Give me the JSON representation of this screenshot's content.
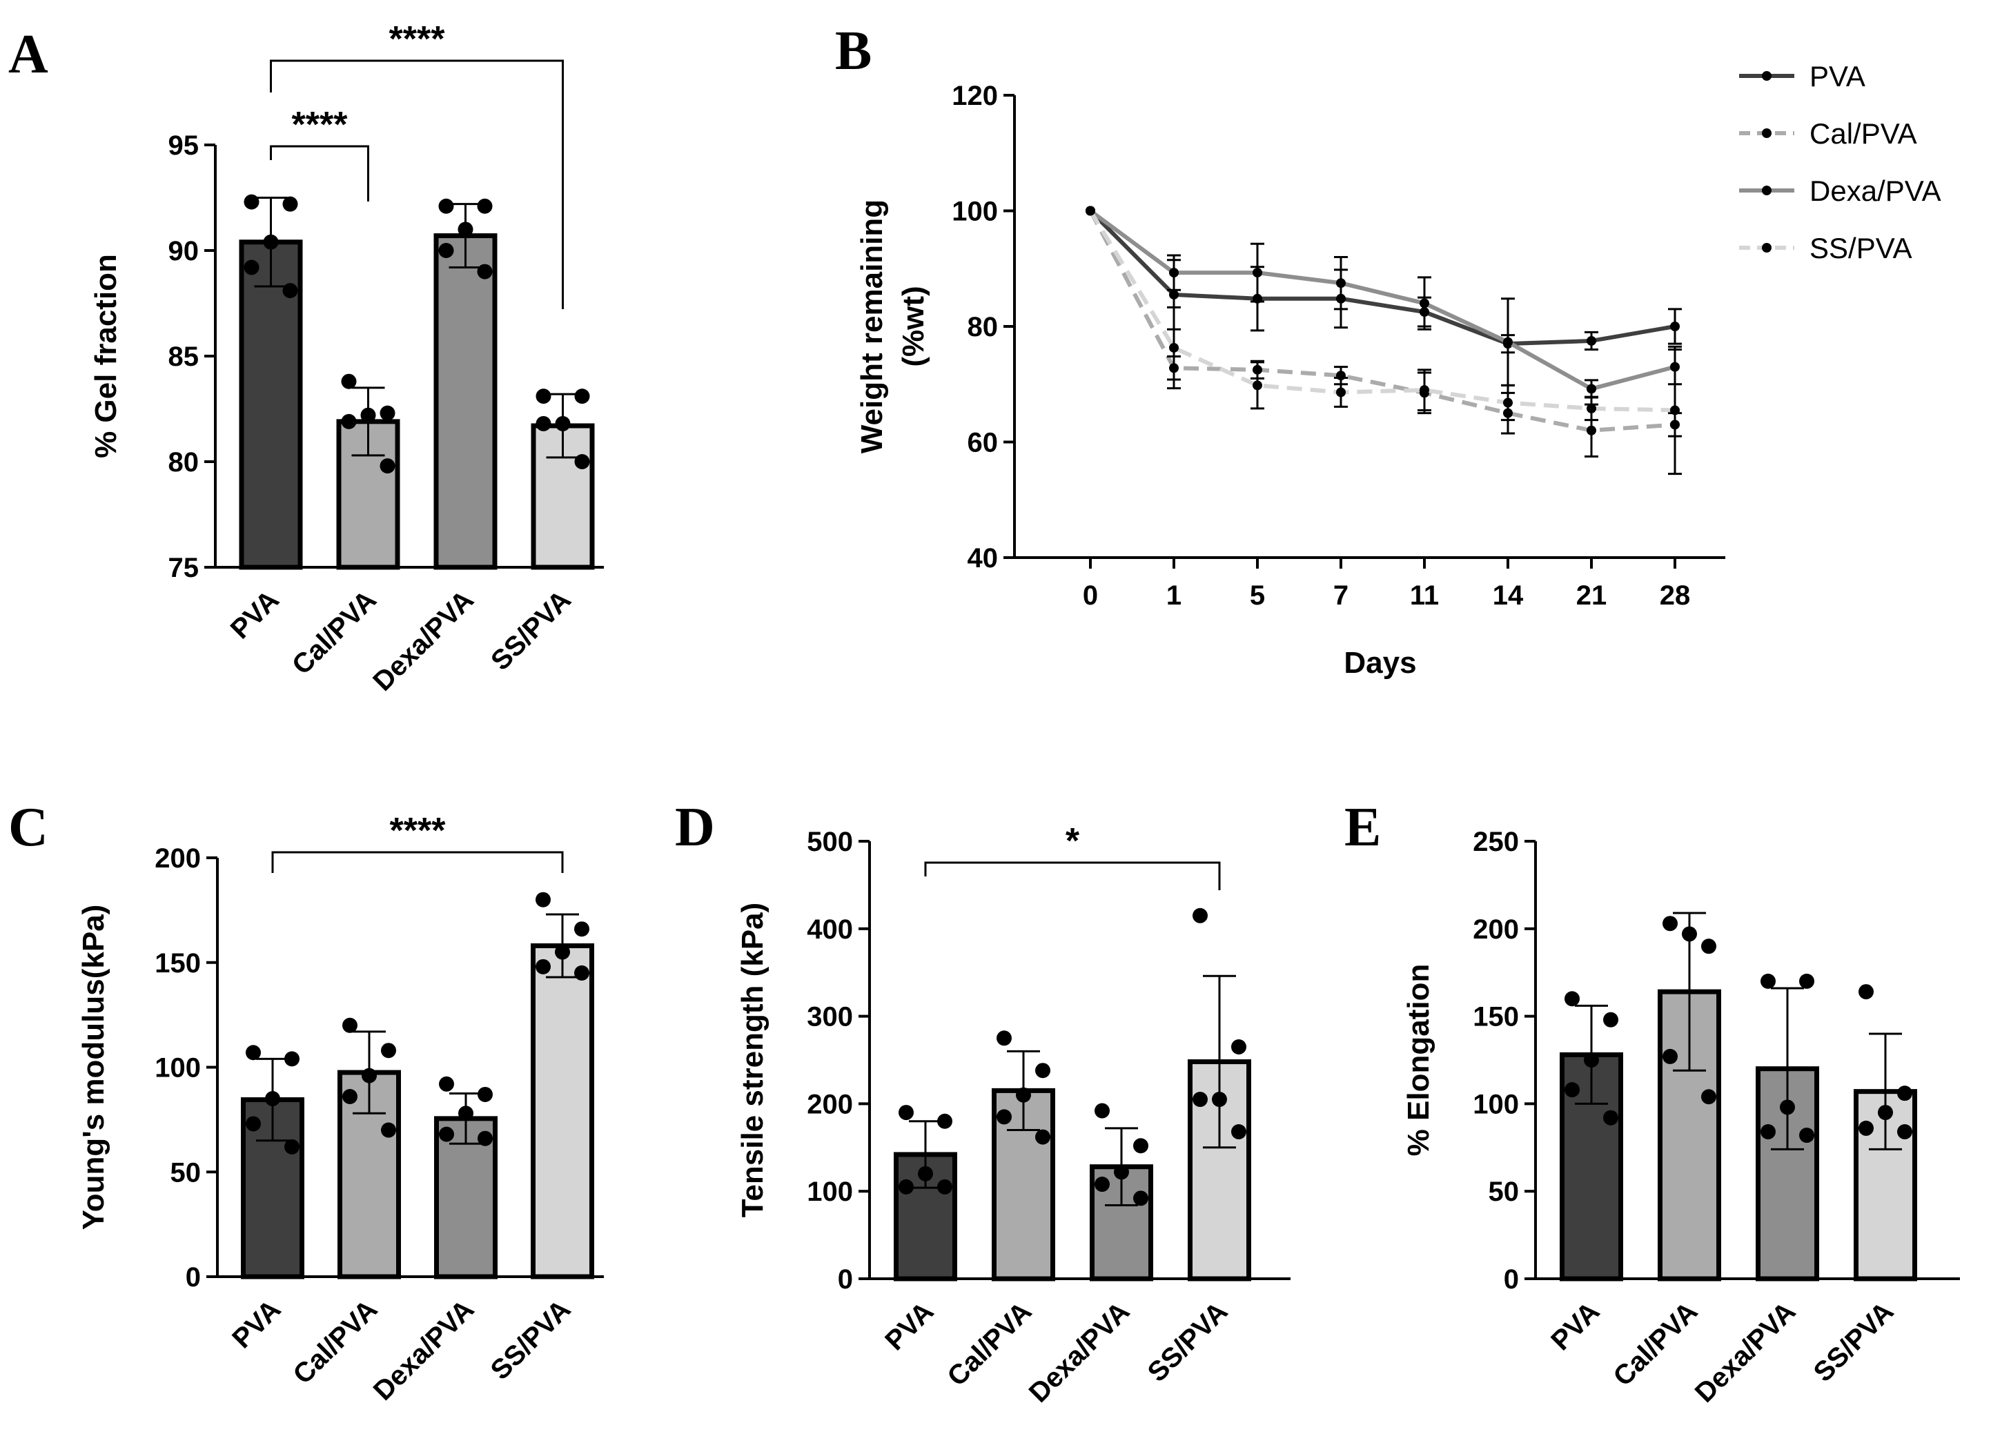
{
  "figure": {
    "colors": {
      "PVA": "#3f3f3f",
      "Cal/PVA": "#ababab",
      "Dexa/PVA": "#8e8e8e",
      "SS/PVA": "#d5d5d5",
      "axis": "#000000"
    }
  },
  "chart_data": [
    {
      "panel": "A",
      "type": "bar",
      "ylabel": "% Gel fraction",
      "ylim": [
        75,
        95
      ],
      "yticks": [
        75,
        80,
        85,
        90,
        95
      ],
      "categories": [
        "PVA",
        "Cal/PVA",
        "Dexa/PVA",
        "SS/PVA"
      ],
      "values": [
        90.4,
        81.9,
        90.7,
        81.7
      ],
      "sd": [
        2.1,
        1.6,
        1.5,
        1.5
      ],
      "points": [
        [
          92.3,
          92.2,
          90.4,
          89.2,
          88.1
        ],
        [
          83.8,
          82.3,
          82.2,
          81.9,
          79.8
        ],
        [
          92.1,
          92.1,
          91.0,
          90.0,
          89.0
        ],
        [
          83.1,
          83.1,
          81.8,
          81.8,
          80.0
        ]
      ],
      "significance": [
        {
          "from": 0,
          "to": 1,
          "label": "****"
        },
        {
          "from": 0,
          "to": 3,
          "label": "****"
        }
      ]
    },
    {
      "panel": "B",
      "type": "line",
      "xlabel": "Days",
      "ylabel": [
        "Weight remaining",
        "(%wt)"
      ],
      "ylim": [
        40,
        120
      ],
      "yticks": [
        40,
        60,
        80,
        100,
        120
      ],
      "x": [
        "0",
        "1",
        "5",
        "7",
        "11",
        "14",
        "21",
        "28"
      ],
      "series": [
        {
          "name": "PVA",
          "dash": false,
          "values": [
            100,
            85.5,
            84.8,
            84.8,
            82.5,
            77.0,
            77.5,
            80.0
          ],
          "sd": [
            0,
            6.0,
            5.5,
            5.0,
            2.5,
            1.5,
            1.5,
            3.0
          ]
        },
        {
          "name": "Cal/PVA",
          "dash": true,
          "values": [
            100,
            72.8,
            72.5,
            71.5,
            68.5,
            65.0,
            62.0,
            63.0
          ],
          "sd": [
            0,
            2.0,
            1.5,
            1.5,
            3.5,
            3.5,
            4.5,
            2.0
          ]
        },
        {
          "name": "Dexa/PVA",
          "dash": false,
          "values": [
            100,
            89.3,
            89.3,
            87.5,
            84.0,
            77.3,
            69.2,
            73.0
          ],
          "sd": [
            0,
            3.0,
            5.0,
            4.5,
            4.5,
            7.5,
            1.5,
            3.0
          ]
        },
        {
          "name": "SS/PVA",
          "dash": true,
          "values": [
            100,
            76.3,
            69.8,
            68.6,
            69.0,
            66.8,
            65.8,
            65.5
          ],
          "sd": [
            0,
            7.0,
            4.0,
            2.5,
            3.5,
            3.0,
            2.0,
            11.0
          ]
        }
      ],
      "legend": [
        "PVA",
        "Cal/PVA",
        "Dexa/PVA",
        "SS/PVA"
      ]
    },
    {
      "panel": "C",
      "type": "bar",
      "ylabel": "Young's modulus(kPa)",
      "ylim": [
        0,
        200
      ],
      "yticks": [
        0,
        50,
        100,
        150,
        200
      ],
      "categories": [
        "PVA",
        "Cal/PVA",
        "Dexa/PVA",
        "SS/PVA"
      ],
      "values": [
        84.5,
        97.5,
        75.5,
        158.0
      ],
      "sd": [
        19.5,
        19.5,
        12.0,
        15.0
      ],
      "points": [
        [
          107,
          104,
          85,
          73,
          62
        ],
        [
          120,
          108,
          96,
          86,
          70
        ],
        [
          92,
          87,
          78,
          68,
          66
        ],
        [
          180,
          166,
          155,
          148,
          145
        ]
      ],
      "significance": [
        {
          "from": 0,
          "to": 3,
          "label": "****"
        }
      ]
    },
    {
      "panel": "D",
      "type": "bar",
      "ylabel": "Tensile strength (kPa)",
      "ylim": [
        0,
        500
      ],
      "yticks": [
        0,
        100,
        200,
        300,
        400,
        500
      ],
      "categories": [
        "PVA",
        "Cal/PVA",
        "Dexa/PVA",
        "SS/PVA"
      ],
      "values": [
        142,
        215,
        128,
        248
      ],
      "sd": [
        38,
        45,
        44,
        98
      ],
      "points": [
        [
          190,
          180,
          120,
          105,
          105
        ],
        [
          275,
          238,
          210,
          185,
          162
        ],
        [
          192,
          152,
          122,
          108,
          92
        ],
        [
          415,
          265,
          205,
          205,
          168
        ]
      ],
      "significance": [
        {
          "from": 0,
          "to": 3,
          "label": "*"
        }
      ]
    },
    {
      "panel": "E",
      "type": "bar",
      "ylabel": "% Elongation",
      "ylim": [
        0,
        250
      ],
      "yticks": [
        0,
        50,
        100,
        150,
        200,
        250
      ],
      "categories": [
        "PVA",
        "Cal/PVA",
        "Dexa/PVA",
        "SS/PVA"
      ],
      "values": [
        128,
        164,
        120,
        107
      ],
      "sd": [
        28,
        45,
        46,
        33
      ],
      "points": [
        [
          160,
          148,
          125,
          108,
          92
        ],
        [
          203,
          190,
          197,
          127,
          104
        ],
        [
          170,
          170,
          98,
          84,
          82
        ],
        [
          164,
          106,
          95,
          86,
          84
        ]
      ],
      "significance": []
    }
  ]
}
